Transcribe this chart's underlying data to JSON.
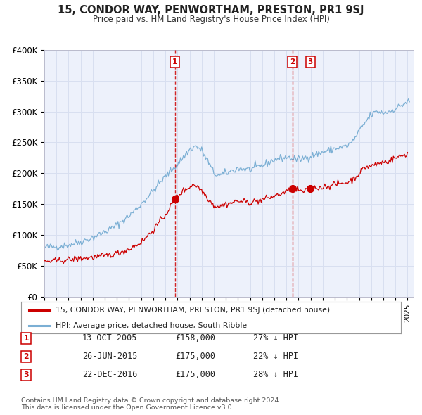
{
  "title": "15, CONDOR WAY, PENWORTHAM, PRESTON, PR1 9SJ",
  "subtitle": "Price paid vs. HM Land Registry's House Price Index (HPI)",
  "ylim": [
    0,
    400000
  ],
  "yticks": [
    0,
    50000,
    100000,
    150000,
    200000,
    250000,
    300000,
    350000,
    400000
  ],
  "ytick_labels": [
    "£0",
    "£50K",
    "£100K",
    "£150K",
    "£200K",
    "£250K",
    "£300K",
    "£350K",
    "£400K"
  ],
  "xlim_start": 1995.0,
  "xlim_end": 2025.5,
  "sale_color": "#cc0000",
  "hpi_color": "#7bafd4",
  "grid_color": "#d8dff0",
  "plot_bg_color": "#edf1fb",
  "transaction_dates": [
    2005.79,
    2015.49,
    2016.98
  ],
  "transaction_prices": [
    158000,
    175000,
    175000
  ],
  "vline_dates": [
    2005.79,
    2015.49
  ],
  "legend_sale_label": "15, CONDOR WAY, PENWORTHAM, PRESTON, PR1 9SJ (detached house)",
  "legend_hpi_label": "HPI: Average price, detached house, South Ribble",
  "table_rows": [
    {
      "num": "1",
      "date": "13-OCT-2005",
      "price": "£158,000",
      "hpi": "27% ↓ HPI"
    },
    {
      "num": "2",
      "date": "26-JUN-2015",
      "price": "£175,000",
      "hpi": "22% ↓ HPI"
    },
    {
      "num": "3",
      "date": "22-DEC-2016",
      "price": "£175,000",
      "hpi": "28% ↓ HPI"
    }
  ],
  "footnote": "Contains HM Land Registry data © Crown copyright and database right 2024.\nThis data is licensed under the Open Government Licence v3.0."
}
